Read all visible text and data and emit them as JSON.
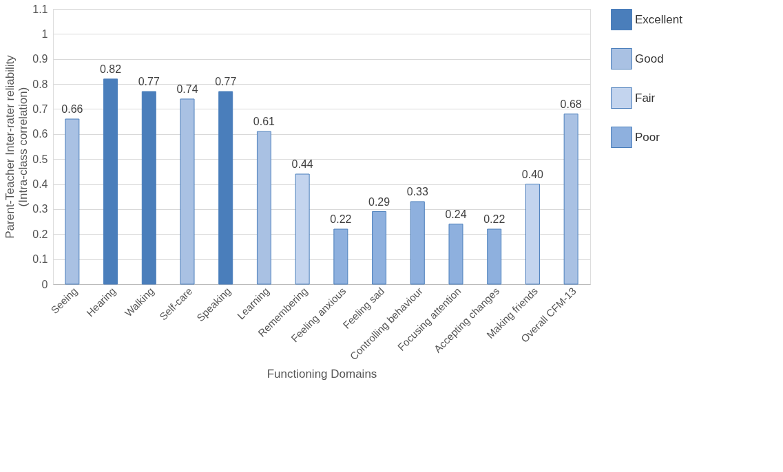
{
  "chart_data": {
    "type": "bar",
    "xlabel": "Functioning Domains",
    "ylabel": "Parent-Teacher Inter-rater reliability (Intra-class correlation)",
    "categories": [
      "Seeing",
      "Hearing",
      "Walking",
      "Self-care",
      "Speaking",
      "Learning",
      "Remembering",
      "Feeling anxious",
      "Feeling sad",
      "Controlling behaviour",
      "Focusing attention",
      "Accepting changes",
      "Making friends",
      "Overall CFM-13"
    ],
    "series": [
      {
        "name": "Excellent",
        "color": "#4a7ebb",
        "values": [
          null,
          0.82,
          0.77,
          null,
          0.77,
          null,
          null,
          null,
          null,
          null,
          null,
          null,
          null,
          null
        ],
        "value_labels": [
          null,
          "0.82",
          "0.77",
          null,
          "0.77",
          null,
          null,
          null,
          null,
          null,
          null,
          null,
          null,
          null
        ]
      },
      {
        "name": "Good",
        "color": "#a9c1e3",
        "values": [
          0.66,
          null,
          null,
          0.74,
          null,
          0.61,
          null,
          null,
          null,
          null,
          null,
          null,
          null,
          0.68
        ],
        "value_labels": [
          "0.66",
          null,
          null,
          "0.74",
          null,
          "0.61",
          null,
          null,
          null,
          null,
          null,
          null,
          null,
          "0.68"
        ]
      },
      {
        "name": "Fair",
        "color": "#c3d4ee",
        "values": [
          null,
          null,
          null,
          null,
          null,
          null,
          0.44,
          null,
          null,
          null,
          null,
          null,
          0.4,
          null
        ],
        "value_labels": [
          null,
          null,
          null,
          null,
          null,
          null,
          "0.44",
          null,
          null,
          null,
          null,
          null,
          "0.40",
          null
        ]
      },
      {
        "name": "Poor",
        "color": "#8eb0de",
        "values": [
          null,
          null,
          null,
          null,
          null,
          null,
          null,
          0.22,
          0.29,
          0.33,
          0.24,
          0.22,
          null,
          null
        ],
        "value_labels": [
          null,
          null,
          null,
          null,
          null,
          null,
          null,
          "0.22",
          "0.29",
          "0.33",
          "0.24",
          "0.22",
          null,
          null
        ]
      }
    ],
    "ylim": [
      0,
      1.1
    ],
    "yticks": [
      0,
      0.1,
      0.2,
      0.3,
      0.4,
      0.5,
      0.6,
      0.7,
      0.8,
      0.9,
      1,
      1.1
    ],
    "grid": "y",
    "legend": "right"
  }
}
